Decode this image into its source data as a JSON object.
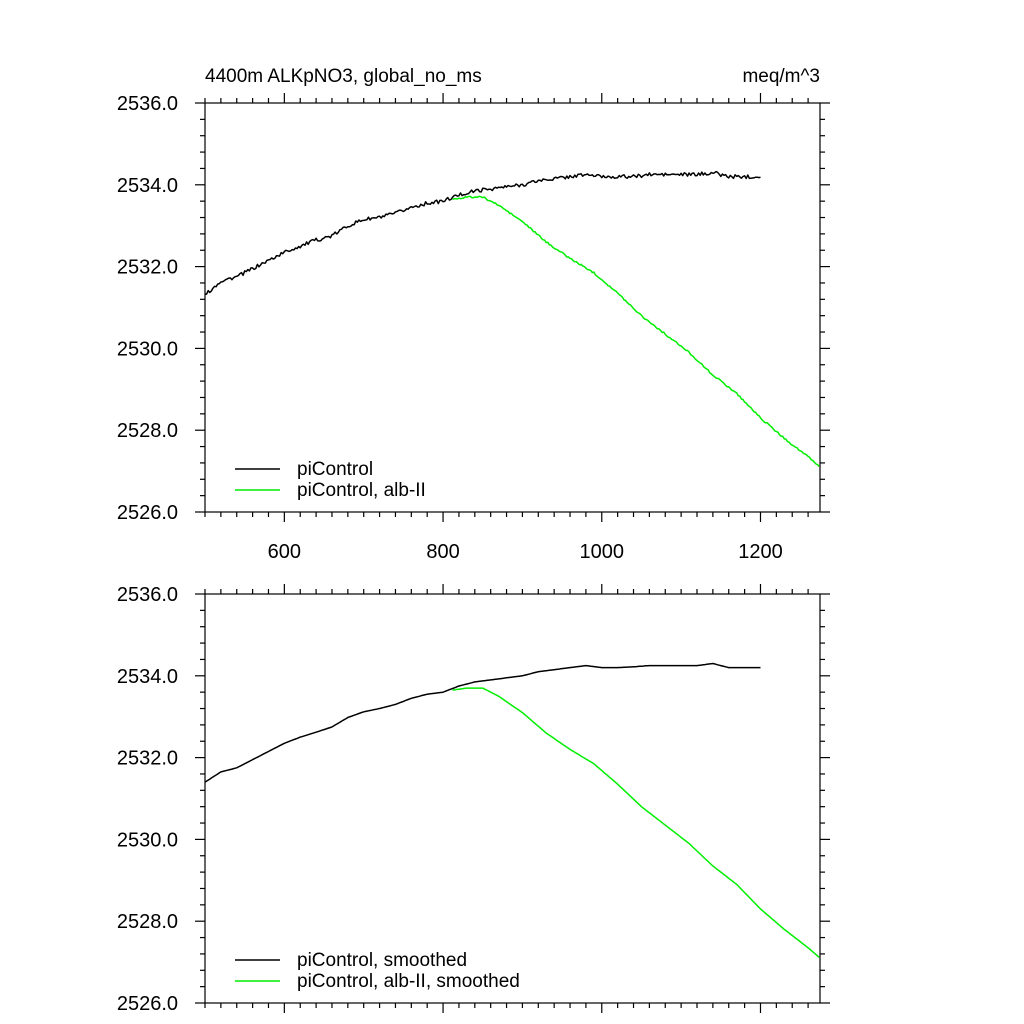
{
  "chart_data": [
    {
      "type": "line",
      "title_left": "4400m ALKpNO3, global_no_ms",
      "title_right": "meq/m^3",
      "xlim": [
        500,
        1275
      ],
      "ylim": [
        2526.0,
        2536.0
      ],
      "x_ticks": [
        600,
        800,
        1000,
        1200
      ],
      "x_tick_labels": [
        "600",
        "800",
        "1000",
        "1200"
      ],
      "y_ticks": [
        2526.0,
        2528.0,
        2530.0,
        2532.0,
        2534.0,
        2536.0
      ],
      "y_tick_labels": [
        "2526.0",
        "2528.0",
        "2530.0",
        "2532.0",
        "2534.0",
        "2536.0"
      ],
      "legend_position": "bottom-left",
      "series": [
        {
          "name": "piControl",
          "color": "#000000",
          "x": [
            500,
            520,
            540,
            560,
            580,
            600,
            620,
            640,
            660,
            680,
            700,
            720,
            740,
            760,
            780,
            800,
            820,
            840,
            860,
            880,
            900,
            920,
            940,
            960,
            980,
            1000,
            1020,
            1040,
            1060,
            1080,
            1100,
            1120,
            1140,
            1160,
            1180,
            1200
          ],
          "y": [
            2531.3,
            2531.65,
            2531.75,
            2531.95,
            2532.15,
            2532.35,
            2532.5,
            2532.65,
            2532.75,
            2533.0,
            2533.15,
            2533.2,
            2533.3,
            2533.45,
            2533.55,
            2533.6,
            2533.75,
            2533.85,
            2533.9,
            2533.95,
            2534.0,
            2534.1,
            2534.15,
            2534.2,
            2534.25,
            2534.2,
            2534.2,
            2534.2,
            2534.25,
            2534.25,
            2534.25,
            2534.25,
            2534.3,
            2534.2,
            2534.2,
            2534.2
          ]
        },
        {
          "name": "piControl, alb-II",
          "color": "#00ee00",
          "x": [
            812,
            830,
            850,
            870,
            900,
            930,
            960,
            990,
            1020,
            1050,
            1080,
            1110,
            1140,
            1170,
            1200,
            1230,
            1260,
            1275
          ],
          "y": [
            2533.65,
            2533.7,
            2533.7,
            2533.5,
            2533.1,
            2532.6,
            2532.2,
            2531.85,
            2531.35,
            2530.8,
            2530.35,
            2529.9,
            2529.35,
            2528.9,
            2528.3,
            2527.8,
            2527.35,
            2527.1
          ]
        }
      ]
    },
    {
      "type": "line",
      "xlim": [
        500,
        1275
      ],
      "ylim": [
        2526.0,
        2536.0
      ],
      "x_ticks": [
        600,
        800,
        1000,
        1200
      ],
      "x_tick_labels": [
        "",
        "",
        "",
        ""
      ],
      "y_ticks": [
        2526.0,
        2528.0,
        2530.0,
        2532.0,
        2534.0,
        2536.0
      ],
      "y_tick_labels": [
        "2526.0",
        "2528.0",
        "2530.0",
        "2532.0",
        "2534.0",
        "2536.0"
      ],
      "legend_position": "bottom-left",
      "series": [
        {
          "name": "piControl, smoothed",
          "color": "#000000",
          "x": [
            500,
            520,
            540,
            560,
            580,
            600,
            620,
            640,
            660,
            680,
            700,
            720,
            740,
            760,
            780,
            800,
            820,
            840,
            860,
            880,
            900,
            920,
            940,
            960,
            980,
            1000,
            1020,
            1040,
            1060,
            1080,
            1100,
            1120,
            1140,
            1160,
            1180,
            1200
          ],
          "y": [
            2531.4,
            2531.65,
            2531.75,
            2531.95,
            2532.15,
            2532.35,
            2532.5,
            2532.62,
            2532.75,
            2532.98,
            2533.12,
            2533.2,
            2533.3,
            2533.45,
            2533.55,
            2533.6,
            2533.75,
            2533.85,
            2533.9,
            2533.95,
            2534.0,
            2534.1,
            2534.15,
            2534.2,
            2534.25,
            2534.2,
            2534.2,
            2534.22,
            2534.25,
            2534.25,
            2534.25,
            2534.25,
            2534.3,
            2534.2,
            2534.2,
            2534.2
          ]
        },
        {
          "name": "piControl, alb-II, smoothed",
          "color": "#00ee00",
          "x": [
            812,
            830,
            850,
            870,
            900,
            930,
            960,
            990,
            1020,
            1050,
            1080,
            1110,
            1140,
            1170,
            1200,
            1230,
            1260,
            1275
          ],
          "y": [
            2533.65,
            2533.7,
            2533.7,
            2533.5,
            2533.1,
            2532.6,
            2532.2,
            2531.85,
            2531.35,
            2530.8,
            2530.35,
            2529.9,
            2529.35,
            2528.9,
            2528.3,
            2527.8,
            2527.35,
            2527.1
          ]
        }
      ]
    }
  ]
}
